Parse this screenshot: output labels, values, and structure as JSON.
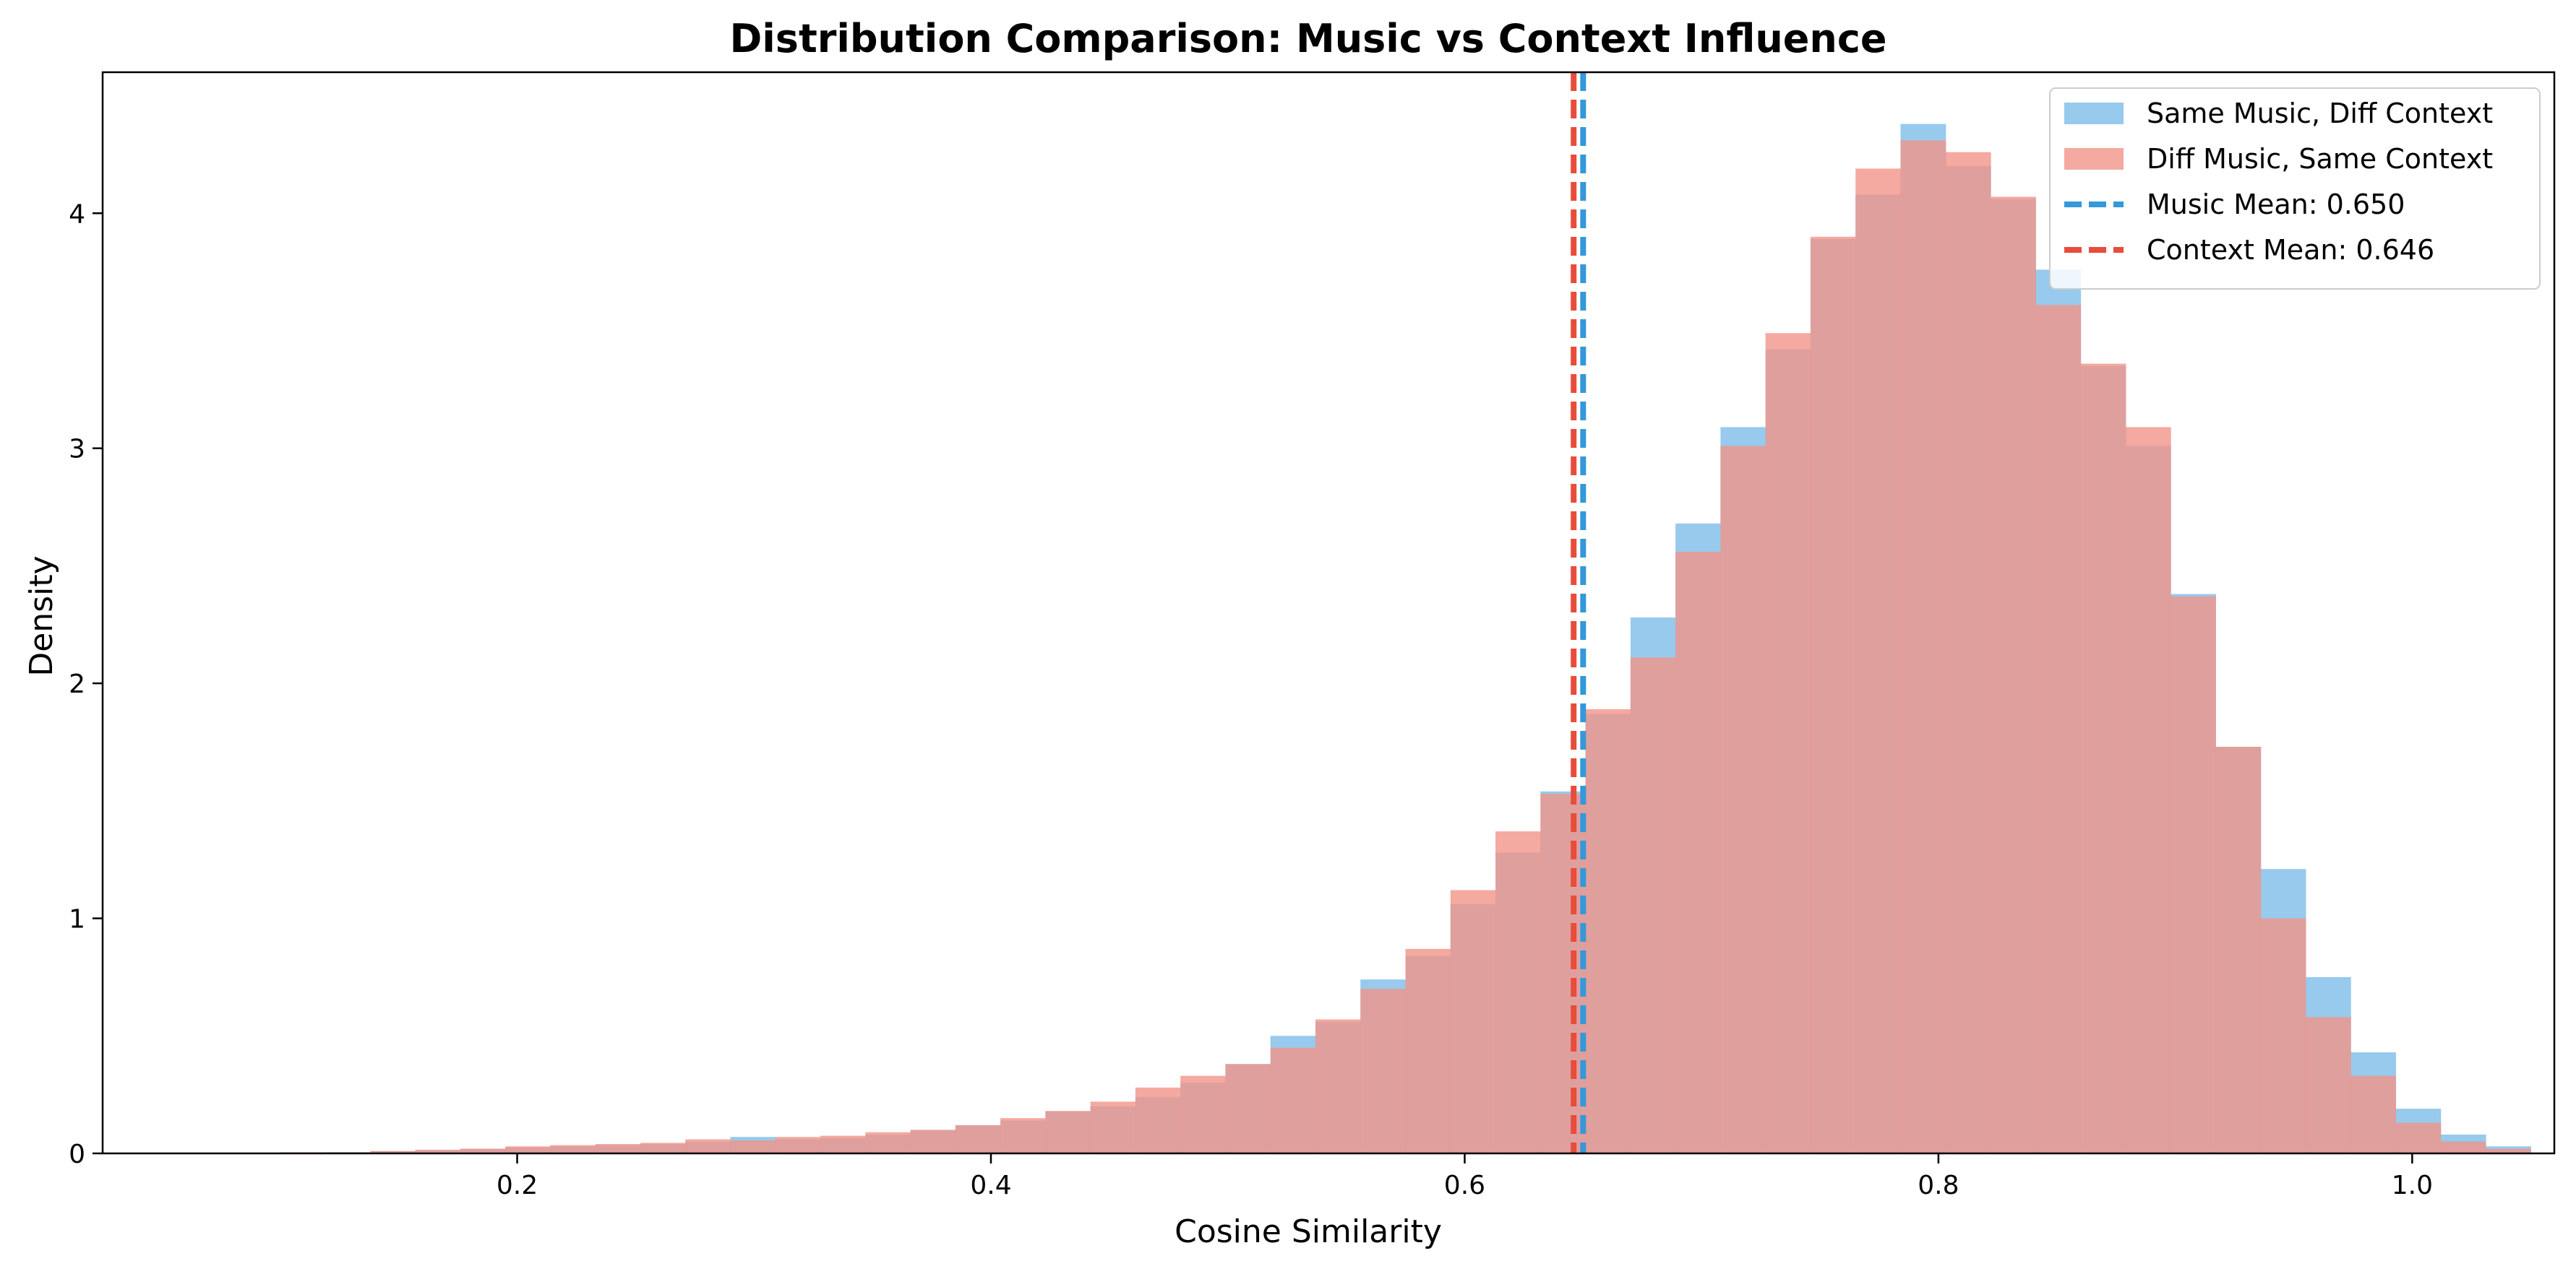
{
  "chart_data": {
    "type": "histogram",
    "title": "Distribution Comparison: Music vs Context Influence",
    "xlabel": "Cosine Similarity",
    "ylabel": "Density",
    "xlim": [
      0.025,
      1.06
    ],
    "ylim": [
      0,
      4.6
    ],
    "xticks": [
      0.2,
      0.4,
      0.6,
      0.8,
      1.0
    ],
    "xtick_labels": [
      "0.2",
      "0.4",
      "0.6",
      "0.8",
      "1.0"
    ],
    "yticks": [
      0,
      1,
      2,
      3,
      4
    ],
    "ytick_labels": [
      "0",
      "1",
      "2",
      "3",
      "4"
    ],
    "grid": false,
    "legend_position": "top-right",
    "series": [
      {
        "name": "Same Music, Diff Context",
        "color": "#85C1E9",
        "opacity": 0.85,
        "bin_start": 0.1,
        "bin_width": 0.019,
        "values": [
          0.0,
          0.005,
          0.01,
          0.015,
          0.02,
          0.025,
          0.03,
          0.035,
          0.04,
          0.05,
          0.07,
          0.06,
          0.065,
          0.08,
          0.1,
          0.12,
          0.14,
          0.18,
          0.2,
          0.24,
          0.3,
          0.38,
          0.5,
          0.56,
          0.74,
          0.84,
          1.06,
          1.28,
          1.54,
          1.87,
          2.28,
          2.68,
          3.09,
          3.42,
          3.89,
          4.08,
          4.38,
          4.2,
          4.06,
          3.76,
          3.35,
          3.01,
          2.38,
          1.73,
          1.21,
          0.75,
          0.43,
          0.19,
          0.08,
          0.03,
          0.0
        ]
      },
      {
        "name": "Diff Music, Same Context",
        "color": "#F1948A",
        "opacity": 0.8,
        "bin_start": 0.1,
        "bin_width": 0.019,
        "values": [
          0.005,
          0.005,
          0.01,
          0.015,
          0.02,
          0.03,
          0.035,
          0.04,
          0.045,
          0.06,
          0.055,
          0.07,
          0.075,
          0.09,
          0.1,
          0.12,
          0.15,
          0.18,
          0.22,
          0.28,
          0.33,
          0.38,
          0.45,
          0.57,
          0.7,
          0.87,
          1.12,
          1.37,
          1.53,
          1.89,
          2.11,
          2.56,
          3.01,
          3.49,
          3.9,
          4.19,
          4.31,
          4.26,
          4.07,
          3.61,
          3.36,
          3.09,
          2.37,
          1.73,
          1.0,
          0.58,
          0.33,
          0.13,
          0.05,
          0.02,
          0.0
        ]
      }
    ],
    "vlines": [
      {
        "name": "Music Mean: 0.650",
        "x": 0.65,
        "color": "#3498DB",
        "style": "dashed"
      },
      {
        "name": "Context Mean: 0.646",
        "x": 0.646,
        "color": "#E74C3C",
        "style": "dashed"
      }
    ]
  }
}
